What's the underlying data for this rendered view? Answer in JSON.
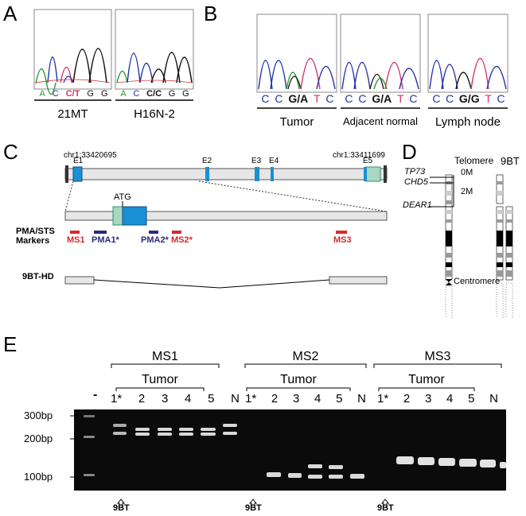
{
  "panels": {
    "a": "A",
    "b": "B",
    "c": "C",
    "d": "D",
    "e": "E"
  },
  "panel_a": {
    "samples": [
      {
        "label": "21MT",
        "bases": [
          "A",
          "C",
          "C/T",
          "G",
          "G"
        ]
      },
      {
        "label": "H16N-2",
        "bases": [
          "A",
          "C",
          "C/C",
          "G",
          "G"
        ]
      }
    ]
  },
  "panel_b": {
    "samples": [
      {
        "label": "Tumor",
        "bases": [
          "C",
          "C",
          "G/A",
          "T",
          "C"
        ]
      },
      {
        "label": "Adjacent normal",
        "bases": [
          "C",
          "C",
          "G/A",
          "T",
          "C"
        ]
      },
      {
        "label": "Lymph node",
        "bases": [
          "C",
          "C",
          "G/G",
          "T",
          "C"
        ]
      }
    ]
  },
  "panel_c": {
    "coord_left": "chr1:33420695",
    "coord_right": "chr1:33411699",
    "exons": [
      "E1",
      "E2",
      "E3",
      "E4",
      "E5"
    ],
    "atg": "ATG",
    "markers_title_1": "PMA/STS",
    "markers_title_2": "Markers",
    "markers": [
      {
        "name": "MS1",
        "color": "#d42a2a"
      },
      {
        "name": "PMA1*",
        "color": "#2a2a80"
      },
      {
        "name": "PMA2*",
        "color": "#2a2a80"
      },
      {
        "name": "MS2*",
        "color": "#d42a2a"
      },
      {
        "name": "MS3",
        "color": "#d42a2a"
      }
    ],
    "deletion_label": "9BT-HD"
  },
  "panel_d": {
    "telomere": "Telomere",
    "sample": "9BT",
    "genes": [
      "TP73",
      "CHD5",
      "DEAR1"
    ],
    "scale_0": "0M",
    "scale_2": "2M",
    "centromere": "Centromere"
  },
  "panel_e": {
    "groups": [
      {
        "name": "MS1",
        "tumor_label": "Tumor",
        "lanes": [
          "1*",
          "2",
          "3",
          "4",
          "5",
          "N"
        ]
      },
      {
        "name": "MS2",
        "tumor_label": "Tumor",
        "lanes": [
          "1*",
          "2",
          "3",
          "4",
          "5",
          "N"
        ]
      },
      {
        "name": "MS3",
        "tumor_label": "Tumor",
        "lanes": [
          "1*",
          "2",
          "3",
          "4",
          "5",
          "N"
        ]
      }
    ],
    "ladder_lane": "-",
    "size_markers": [
      "300bp",
      "200bp",
      "100bp"
    ],
    "arrow_label": "9BT"
  }
}
